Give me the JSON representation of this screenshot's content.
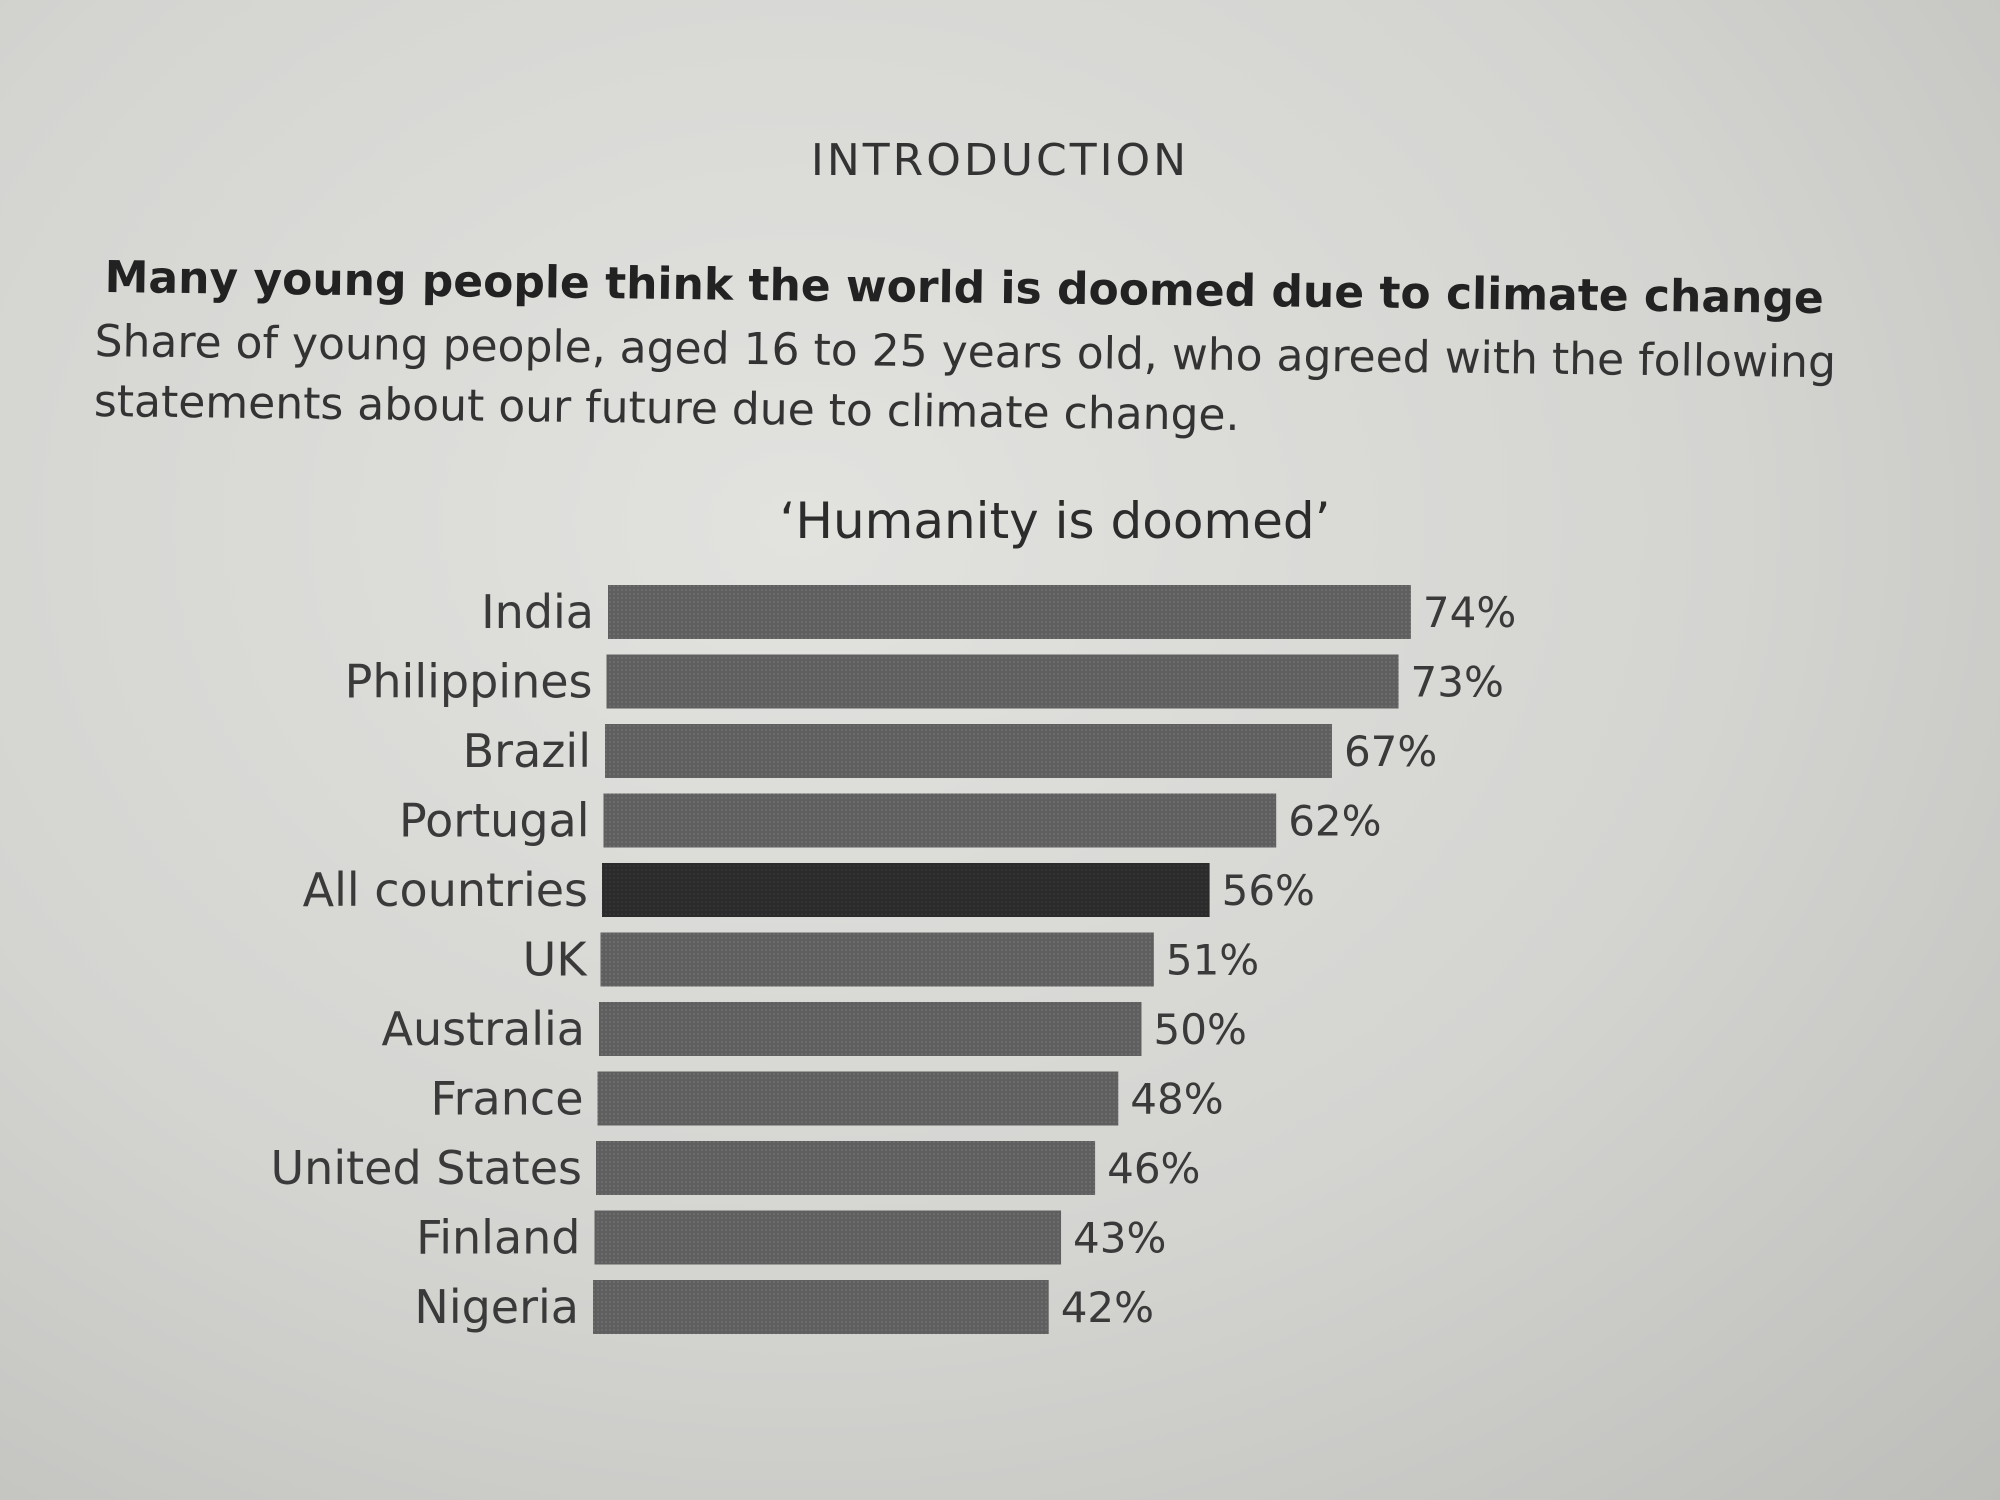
{
  "section_heading": "INTRODUCTION",
  "headline": "Many young people think the world is doomed due to climate change",
  "subhead": "Share of young people, aged 16 to 25 years old, who agreed with the following statements about our future due to climate change.",
  "colors": {
    "bar": "#5f5f5f",
    "highlight_bar": "#2b2b2b"
  },
  "chart_data": {
    "type": "bar",
    "orientation": "horizontal",
    "title": "‘Humanity is doomed’",
    "xlabel": "",
    "ylabel": "",
    "categories": [
      "India",
      "Philippines",
      "Brazil",
      "Portugal",
      "All countries",
      "UK",
      "Australia",
      "France",
      "United States",
      "Finland",
      "Nigeria"
    ],
    "values": [
      74,
      73,
      67,
      62,
      56,
      51,
      50,
      48,
      46,
      43,
      42
    ],
    "value_labels": [
      "74%",
      "73%",
      "67%",
      "62%",
      "56%",
      "51%",
      "50%",
      "48%",
      "46%",
      "43%",
      "42%"
    ],
    "highlight": "All countries",
    "grid": false
  }
}
